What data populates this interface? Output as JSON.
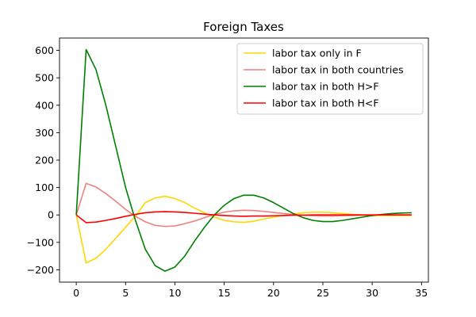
{
  "chart_data": {
    "type": "line",
    "title": "Foreign Taxes",
    "xlabel": "",
    "ylabel": "",
    "xlim": [
      -1.7,
      35.7
    ],
    "ylim": [
      -245,
      645
    ],
    "xticks": [
      0,
      5,
      10,
      15,
      20,
      25,
      30,
      35
    ],
    "yticks": [
      -200,
      -100,
      0,
      100,
      200,
      300,
      400,
      500,
      600
    ],
    "grid": false,
    "legend_position": "top-right",
    "x": [
      0,
      1,
      2,
      3,
      4,
      5,
      6,
      7,
      8,
      9,
      10,
      11,
      12,
      13,
      14,
      15,
      16,
      17,
      18,
      19,
      20,
      21,
      22,
      23,
      24,
      25,
      26,
      27,
      28,
      29,
      30,
      31,
      32,
      33,
      34
    ],
    "series": [
      {
        "name": "labor tax only in F",
        "color": "#ffd700",
        "values": [
          0,
          -175,
          -158,
          -125,
          -85,
          -45,
          -5,
          45,
          62,
          68,
          60,
          45,
          25,
          8,
          -8,
          -20,
          -25,
          -27,
          -23,
          -15,
          -8,
          -2,
          3,
          8,
          10,
          10,
          8,
          5,
          2,
          0,
          -2,
          -2,
          -2,
          -2,
          -2
        ]
      },
      {
        "name": "labor tax in both countries",
        "color": "#f08080",
        "values": [
          0,
          115,
          102,
          78,
          50,
          20,
          -5,
          -25,
          -38,
          -42,
          -40,
          -32,
          -22,
          -10,
          2,
          10,
          15,
          17,
          16,
          13,
          9,
          5,
          2,
          -1,
          -3,
          -4,
          -4,
          -3,
          -2,
          -1,
          0,
          0,
          0,
          0,
          0
        ]
      },
      {
        "name": "labor tax in both H>F",
        "color": "#008000",
        "values": [
          0,
          603,
          530,
          400,
          250,
          100,
          -20,
          -125,
          -185,
          -205,
          -190,
          -150,
          -95,
          -45,
          0,
          35,
          60,
          72,
          72,
          62,
          45,
          25,
          5,
          -10,
          -20,
          -24,
          -24,
          -20,
          -14,
          -8,
          -2,
          2,
          5,
          7,
          8
        ]
      },
      {
        "name": "labor tax in both H<F",
        "color": "#ff0000",
        "values": [
          0,
          -28,
          -26,
          -20,
          -13,
          -5,
          2,
          8,
          11,
          12,
          11,
          9,
          6,
          3,
          0,
          -2,
          -4,
          -5,
          -4,
          -4,
          -3,
          -2,
          -1,
          -1,
          0,
          0,
          0,
          0,
          0,
          0,
          0,
          0,
          0,
          0,
          0
        ]
      }
    ]
  }
}
